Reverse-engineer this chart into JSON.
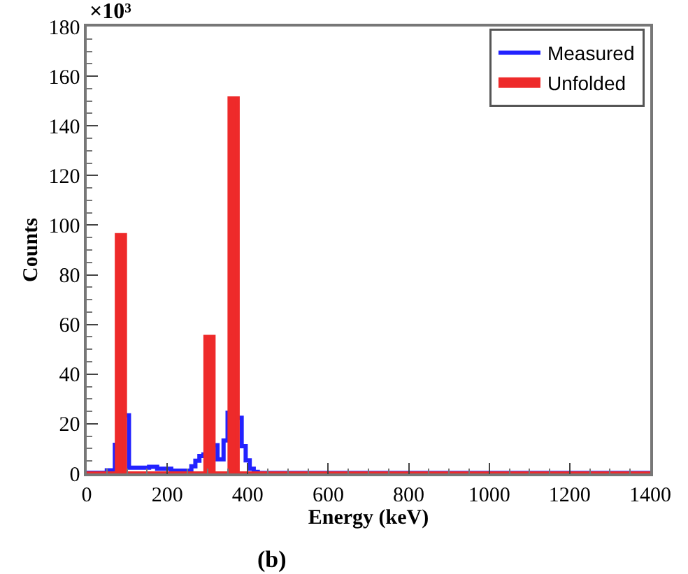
{
  "chart_data": {
    "type": "step",
    "xlabel": "Energy (keV)",
    "ylabel": "Counts",
    "annotations": [
      "×10³",
      "(b)"
    ],
    "xlim": [
      0,
      1400
    ],
    "xticks": [
      0,
      200,
      400,
      600,
      800,
      1000,
      1200,
      1400
    ],
    "ylim": [
      0,
      180
    ],
    "yticks": [
      0,
      20,
      40,
      60,
      80,
      100,
      120,
      140,
      160,
      180
    ],
    "legend": "top right",
    "series": [
      {
        "name": "Measured",
        "color": "#2222ff",
        "x": [
          0,
          50,
          70,
          80,
          95,
          105,
          155,
          175,
          210,
          260,
          270,
          280,
          290,
          300,
          315,
          325,
          340,
          350,
          360,
          375,
          385,
          395,
          405,
          415,
          425,
          1400
        ],
        "values": [
          0.3,
          1.3,
          12.4,
          null,
          23.4,
          2.3,
          2.7,
          1.9,
          1.1,
          2.9,
          5.1,
          7,
          8.5,
          null,
          11.4,
          5.7,
          13.3,
          25.3,
          null,
          22.4,
          11,
          5.3,
          1.9,
          0.6,
          0.2,
          0.2
        ]
      },
      {
        "name": "Unfolded",
        "type": "area",
        "color": "#ee2a2a",
        "x": [
          0,
          75,
          95,
          295,
          315,
          355,
          375,
          1400
        ],
        "values": [
          0,
          96,
          0,
          55,
          0,
          151,
          0,
          0
        ]
      }
    ]
  }
}
